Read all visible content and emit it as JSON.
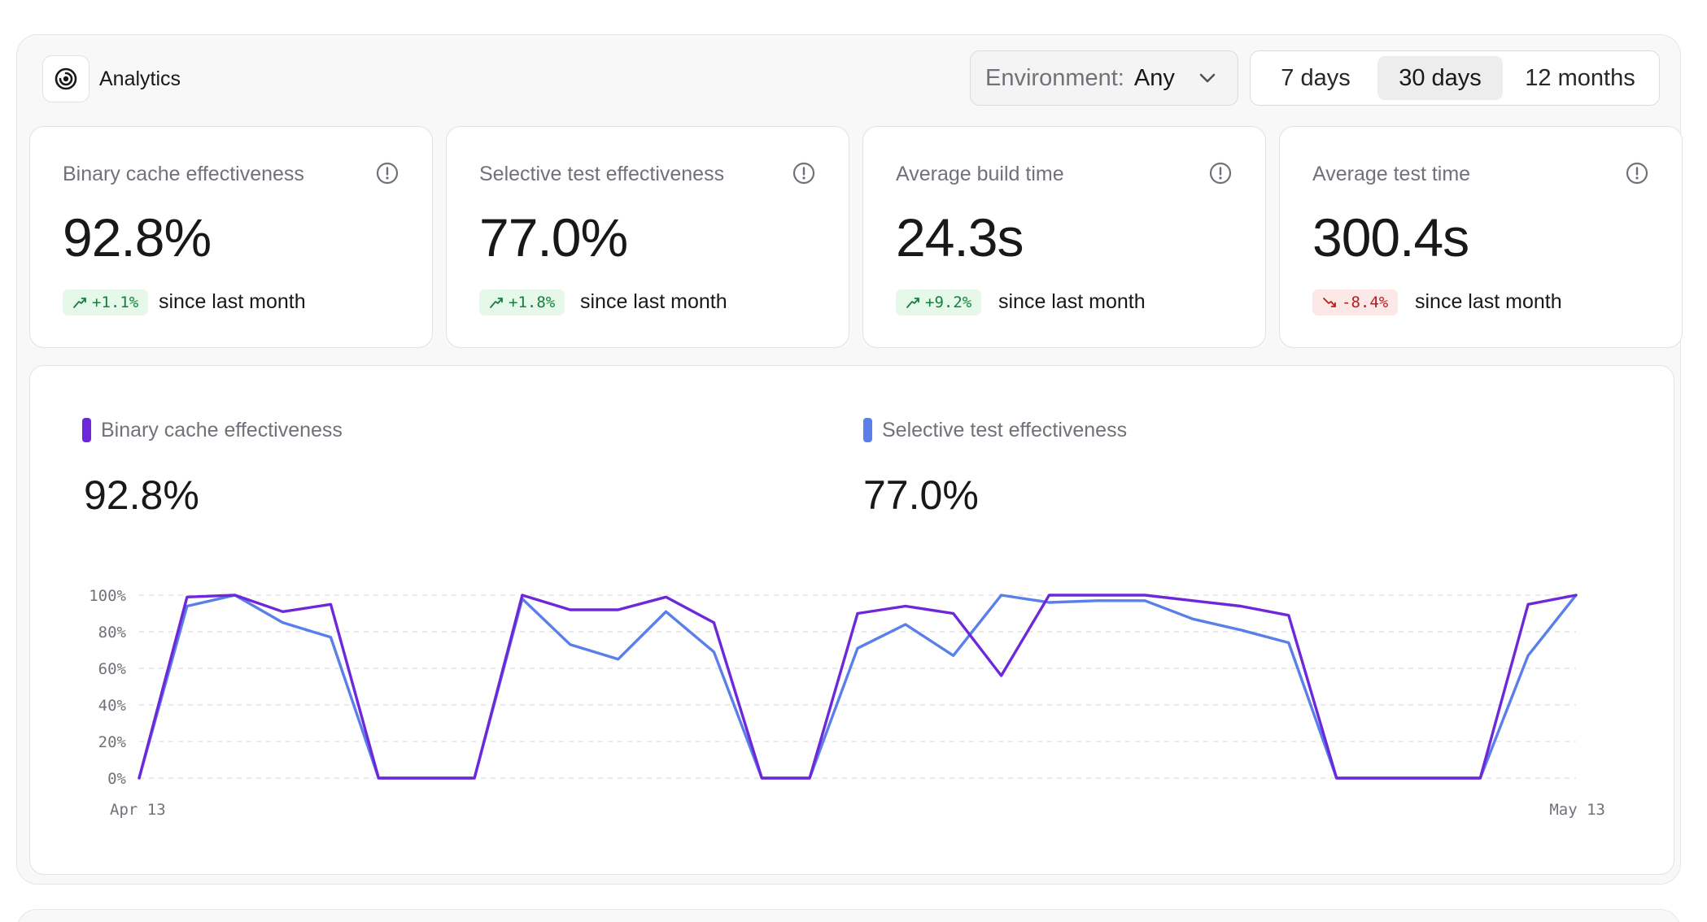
{
  "header": {
    "title": "Analytics",
    "environment": {
      "label": "Environment:",
      "value": "Any"
    },
    "ranges": [
      {
        "label": "7 days",
        "active": false
      },
      {
        "label": "30 days",
        "active": true
      },
      {
        "label": "12 months",
        "active": false
      }
    ]
  },
  "cards": [
    {
      "title": "Binary cache effectiveness",
      "value": "92.8%",
      "delta": "+1.1%",
      "trend": "up",
      "since": "since last month"
    },
    {
      "title": "Selective test effectiveness",
      "value": "77.0%",
      "delta": "+1.8%",
      "trend": "up",
      "since": "since last month"
    },
    {
      "title": "Average build time",
      "value": "24.3s",
      "delta": "+9.2%",
      "trend": "up",
      "since": "since last month"
    },
    {
      "title": "Average test time",
      "value": "300.4s",
      "delta": "-8.4%",
      "trend": "down",
      "since": "since last month"
    }
  ],
  "chart": {
    "legend": [
      {
        "label": "Binary cache effectiveness",
        "value": "92.8%",
        "color": "#6d28d9"
      },
      {
        "label": "Selective test effectiveness",
        "value": "77.0%",
        "color": "#5b7fe8"
      }
    ]
  },
  "chart_data": {
    "type": "line",
    "x_labels": [
      "Apr 13",
      "May 13"
    ],
    "y_ticks": [
      "0%",
      "20%",
      "40%",
      "60%",
      "80%",
      "100%"
    ],
    "ylim": [
      0,
      100
    ],
    "grid": true,
    "series": [
      {
        "name": "Binary cache effectiveness",
        "color": "#6d28d9",
        "points": [
          [
            0,
            0
          ],
          [
            1,
            99
          ],
          [
            2,
            100
          ],
          [
            3,
            91
          ],
          [
            4,
            95
          ],
          [
            5,
            0
          ],
          [
            6,
            0
          ],
          [
            7,
            0
          ],
          [
            8,
            100
          ],
          [
            9,
            92
          ],
          [
            10,
            92
          ],
          [
            11,
            99
          ],
          [
            12,
            85
          ],
          [
            13,
            0
          ],
          [
            14,
            0
          ],
          [
            15,
            90
          ],
          [
            16,
            94
          ],
          [
            17,
            90
          ],
          [
            18,
            56
          ],
          [
            19,
            100
          ],
          [
            20,
            100
          ],
          [
            21,
            100
          ],
          [
            22,
            97
          ],
          [
            23,
            94
          ],
          [
            24,
            89
          ],
          [
            25,
            0
          ],
          [
            26,
            0
          ],
          [
            27,
            0
          ],
          [
            28,
            0
          ],
          [
            29,
            95
          ],
          [
            30,
            100
          ]
        ]
      },
      {
        "name": "Selective test effectiveness",
        "color": "#5b7fe8",
        "points": [
          [
            0,
            0
          ],
          [
            1,
            94
          ],
          [
            2,
            100
          ],
          [
            3,
            85
          ],
          [
            4,
            77
          ],
          [
            5,
            0
          ],
          [
            6,
            0
          ],
          [
            7,
            0
          ],
          [
            8,
            98
          ],
          [
            9,
            73
          ],
          [
            10,
            65
          ],
          [
            11,
            91
          ],
          [
            12,
            69
          ],
          [
            13,
            0
          ],
          [
            14,
            0
          ],
          [
            15,
            71
          ],
          [
            16,
            84
          ],
          [
            17,
            67
          ],
          [
            18,
            100
          ],
          [
            19,
            96
          ],
          [
            20,
            97
          ],
          [
            21,
            97
          ],
          [
            22,
            87
          ],
          [
            23,
            81
          ],
          [
            24,
            74
          ],
          [
            25,
            0
          ],
          [
            26,
            0
          ],
          [
            27,
            0
          ],
          [
            28,
            0
          ],
          [
            29,
            67
          ],
          [
            30,
            100
          ]
        ]
      }
    ]
  }
}
